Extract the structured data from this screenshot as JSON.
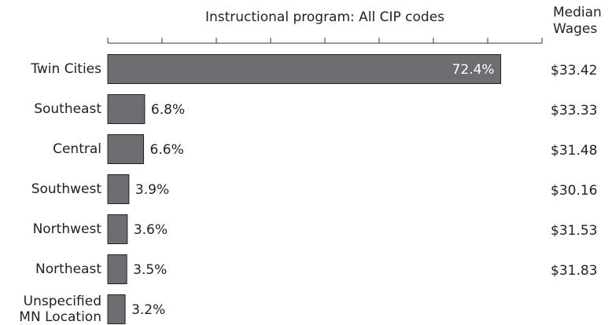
{
  "chart_data": {
    "type": "bar",
    "orientation": "horizontal",
    "title": "Instructional program: All CIP codes",
    "categories": [
      "Twin Cities",
      "Southeast",
      "Central",
      "Southwest",
      "Northwest",
      "Northeast",
      "Unspecified MN Location"
    ],
    "values": [
      72.4,
      6.8,
      6.6,
      3.9,
      3.6,
      3.5,
      3.2
    ],
    "value_labels": [
      "72.4%",
      "6.8%",
      "6.6%",
      "3.9%",
      "3.6%",
      "3.5%",
      "3.2%"
    ],
    "color": "#6d6e71",
    "xlim": [
      0,
      80
    ],
    "xticks": [
      0,
      10,
      20,
      30,
      40,
      50,
      60,
      70,
      80
    ],
    "wages_title": "Median Wages",
    "wages": [
      "$33.42",
      "$33.33",
      "$31.48",
      "$30.16",
      "$31.53",
      "$31.83",
      null
    ]
  }
}
